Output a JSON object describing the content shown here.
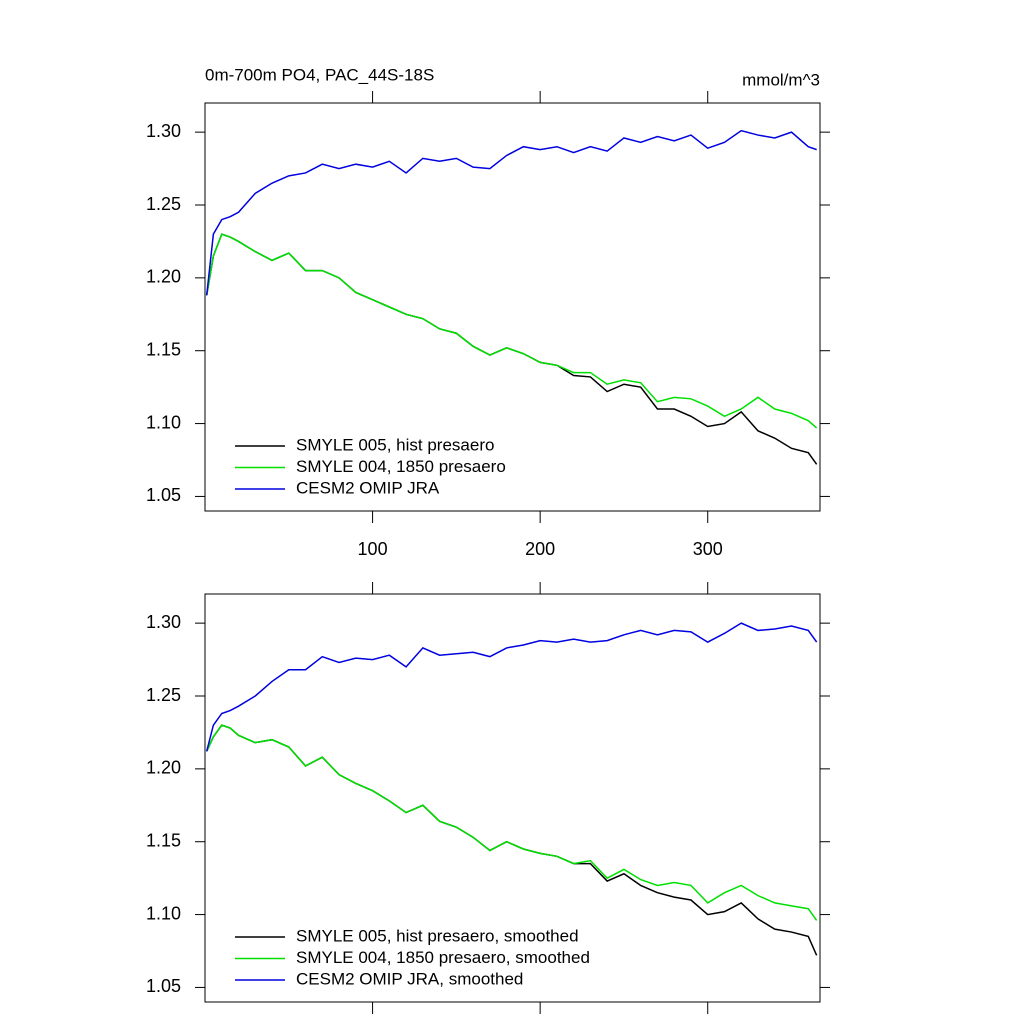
{
  "chart_data": [
    {
      "type": "line",
      "title": "0m-700m PO4, PAC_44S-18S",
      "subtitle": "mmol/m^3",
      "x": [
        1,
        5,
        10,
        15,
        20,
        30,
        40,
        50,
        60,
        70,
        80,
        90,
        100,
        110,
        120,
        130,
        140,
        150,
        160,
        170,
        180,
        190,
        200,
        210,
        220,
        230,
        240,
        250,
        260,
        270,
        280,
        290,
        300,
        310,
        320,
        330,
        340,
        350,
        360,
        365
      ],
      "series": [
        {
          "name": "SMYLE 005, hist presaero",
          "color": "#000000",
          "values": [
            1.188,
            1.215,
            1.23,
            1.228,
            1.225,
            1.218,
            1.212,
            1.217,
            1.205,
            1.205,
            1.2,
            1.19,
            1.185,
            1.18,
            1.175,
            1.172,
            1.165,
            1.162,
            1.153,
            1.147,
            1.152,
            1.148,
            1.142,
            1.14,
            1.133,
            1.132,
            1.122,
            1.127,
            1.125,
            1.11,
            1.11,
            1.105,
            1.098,
            1.1,
            1.108,
            1.095,
            1.09,
            1.083,
            1.08,
            1.072
          ]
        },
        {
          "name": "SMYLE 004, 1850 presaero",
          "color": "#00e000",
          "values": [
            1.188,
            1.215,
            1.23,
            1.228,
            1.225,
            1.218,
            1.212,
            1.217,
            1.205,
            1.205,
            1.2,
            1.19,
            1.185,
            1.18,
            1.175,
            1.172,
            1.165,
            1.162,
            1.153,
            1.147,
            1.152,
            1.148,
            1.142,
            1.14,
            1.135,
            1.135,
            1.127,
            1.13,
            1.128,
            1.115,
            1.118,
            1.117,
            1.112,
            1.105,
            1.11,
            1.118,
            1.11,
            1.107,
            1.102,
            1.097
          ]
        },
        {
          "name": "CESM2 OMIP JRA",
          "color": "#0000e0",
          "values": [
            1.188,
            1.23,
            1.24,
            1.242,
            1.245,
            1.258,
            1.265,
            1.27,
            1.272,
            1.278,
            1.275,
            1.278,
            1.276,
            1.28,
            1.272,
            1.282,
            1.28,
            1.282,
            1.276,
            1.275,
            1.284,
            1.29,
            1.288,
            1.29,
            1.286,
            1.29,
            1.287,
            1.296,
            1.293,
            1.297,
            1.294,
            1.298,
            1.289,
            1.293,
            1.301,
            1.298,
            1.296,
            1.3,
            1.29,
            1.288
          ]
        }
      ],
      "xlim": [
        0,
        367
      ],
      "xticks": [
        100,
        200,
        300
      ],
      "ylim": [
        1.04,
        1.32
      ],
      "yticks": [
        1.05,
        {
          "value": 1.1,
          "label": "1.10"
        },
        1.15,
        {
          "value": 1.2,
          "label": "1.20"
        },
        1.25,
        {
          "value": 1.3,
          "label": "1.30"
        }
      ],
      "legend": "lower-left"
    },
    {
      "type": "line",
      "x": [
        1,
        5,
        10,
        15,
        20,
        30,
        40,
        50,
        60,
        70,
        80,
        90,
        100,
        110,
        120,
        130,
        140,
        150,
        160,
        170,
        180,
        190,
        200,
        210,
        220,
        230,
        240,
        250,
        260,
        270,
        280,
        290,
        300,
        310,
        320,
        330,
        340,
        350,
        360,
        365
      ],
      "series": [
        {
          "name": "SMYLE 005, hist presaero, smoothed",
          "color": "#000000",
          "values": [
            1.212,
            1.222,
            1.23,
            1.228,
            1.223,
            1.218,
            1.22,
            1.215,
            1.202,
            1.208,
            1.196,
            1.19,
            1.185,
            1.178,
            1.17,
            1.175,
            1.164,
            1.16,
            1.153,
            1.144,
            1.15,
            1.145,
            1.142,
            1.14,
            1.135,
            1.135,
            1.123,
            1.128,
            1.12,
            1.115,
            1.112,
            1.11,
            1.1,
            1.102,
            1.108,
            1.097,
            1.09,
            1.088,
            1.085,
            1.072
          ]
        },
        {
          "name": "SMYLE 004, 1850 presaero, smoothed",
          "color": "#00e000",
          "values": [
            1.212,
            1.222,
            1.23,
            1.228,
            1.223,
            1.218,
            1.22,
            1.215,
            1.202,
            1.208,
            1.196,
            1.19,
            1.185,
            1.178,
            1.17,
            1.175,
            1.164,
            1.16,
            1.153,
            1.144,
            1.15,
            1.145,
            1.142,
            1.14,
            1.135,
            1.137,
            1.125,
            1.131,
            1.124,
            1.12,
            1.122,
            1.12,
            1.108,
            1.115,
            1.12,
            1.113,
            1.108,
            1.106,
            1.104,
            1.096
          ]
        },
        {
          "name": "CESM2 OMIP JRA, smoothed",
          "color": "#0000e0",
          "values": [
            1.212,
            1.23,
            1.238,
            1.24,
            1.243,
            1.25,
            1.26,
            1.268,
            1.268,
            1.277,
            1.273,
            1.276,
            1.275,
            1.278,
            1.27,
            1.283,
            1.278,
            1.279,
            1.28,
            1.277,
            1.283,
            1.285,
            1.288,
            1.287,
            1.289,
            1.287,
            1.288,
            1.292,
            1.295,
            1.292,
            1.295,
            1.294,
            1.287,
            1.293,
            1.3,
            1.295,
            1.296,
            1.298,
            1.295,
            1.287
          ]
        }
      ],
      "xlim": [
        0,
        367
      ],
      "xticks": [
        100,
        200,
        300
      ],
      "ylim": [
        1.04,
        1.32
      ],
      "yticks": [
        1.05,
        {
          "value": 1.1,
          "label": "1.10"
        },
        1.15,
        {
          "value": 1.2,
          "label": "1.20"
        },
        1.25,
        {
          "value": 1.3,
          "label": "1.30"
        }
      ],
      "legend": "lower-left"
    }
  ]
}
